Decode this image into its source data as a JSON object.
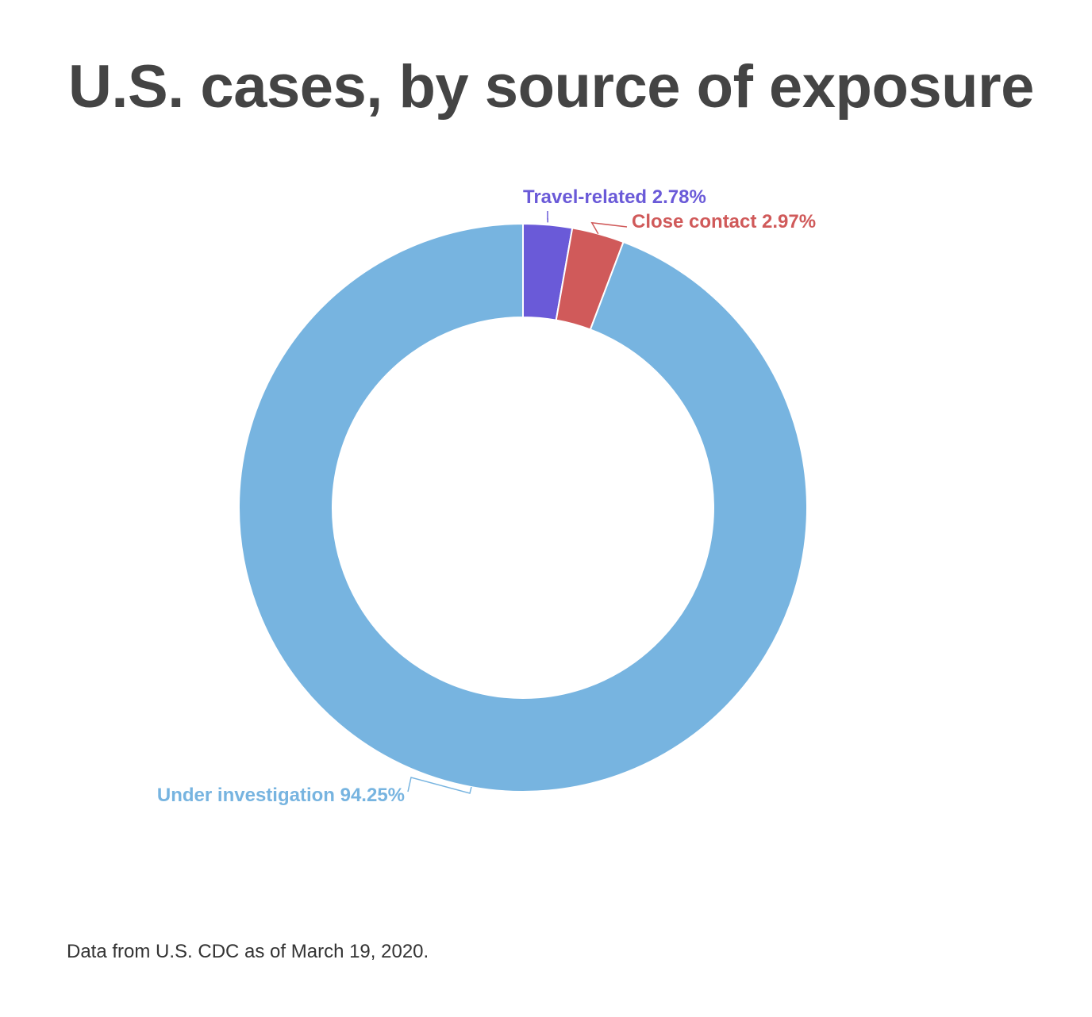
{
  "title": "U.S. cases, by source of exposure",
  "footer": "Data from U.S. CDC as of March 19, 2020.",
  "chart_data": {
    "type": "pie",
    "donut": true,
    "start": "top",
    "direction": "clockwise",
    "slices": [
      {
        "label": "Travel-related",
        "value": 2.78,
        "value_text": "2.78%",
        "color": "#6a5ad8"
      },
      {
        "label": "Close contact",
        "value": 2.97,
        "value_text": "2.97%",
        "color": "#d05a5a"
      },
      {
        "label": "Under investigation",
        "value": 94.25,
        "value_text": "94.25%",
        "color": "#77b4e0"
      }
    ]
  }
}
